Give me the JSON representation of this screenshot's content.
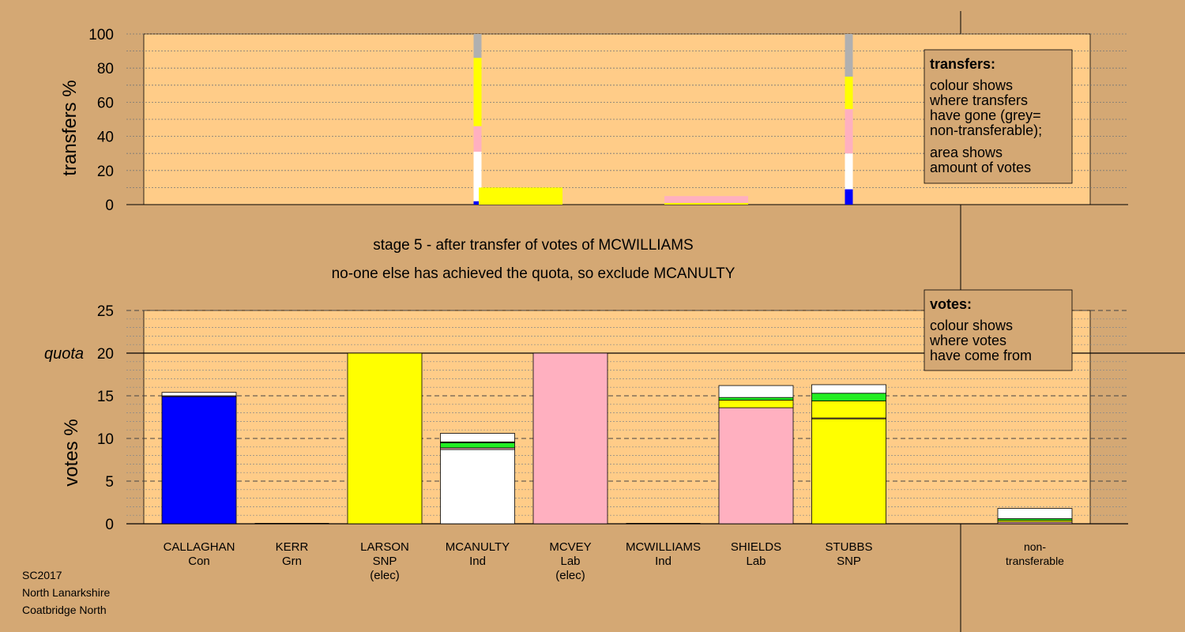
{
  "stage_line": "stage 5 - after transfer of votes of MCWILLIAMS",
  "status_line": "no-one else has achieved the quota, so exclude MCANULTY",
  "footer": {
    "line1": "SC2017",
    "line2": "North Lanarkshire",
    "line3": "Coatbridge North"
  },
  "colors": {
    "Con": "#0000ff",
    "Ind": "#ffffff",
    "Grn": "#22ee22",
    "Lab": "#ffb0c0",
    "SNP": "#ffff00",
    "nontransferable": "#b0b0b0"
  },
  "chart_data": [
    {
      "type": "bar",
      "ylabel": "transfers %",
      "ylim": [
        0,
        100
      ],
      "yticks": [
        0,
        20,
        40,
        60,
        80,
        100
      ],
      "legend": {
        "title": "transfers:",
        "lines": [
          "colour shows",
          "where transfers",
          "have gone (grey=",
          "non-transferable);",
          "area shows",
          "amount of votes"
        ],
        "placement": "top-right"
      },
      "bars": [
        {
          "name": "MCANULTY-outgoing",
          "x": 3.12,
          "segments": [
            {
              "party": "Con",
              "value": 2
            },
            {
              "party": "Ind",
              "value": 29
            },
            {
              "party": "Lab",
              "value": 15
            },
            {
              "party": "SNP",
              "value": 40
            },
            {
              "party": "nontransferable",
              "value": 14
            }
          ]
        },
        {
          "name": "LARSON-surplus",
          "x": 3.43,
          "segments": [
            {
              "party": "SNP",
              "value": 10
            }
          ]
        },
        {
          "name": "MCVEY-surplus",
          "x": 5.43,
          "segments": [
            {
              "party": "SNP",
              "value": 1
            },
            {
              "party": "Lab",
              "value": 4
            }
          ]
        },
        {
          "name": "MCWILLIAMS-outgoing",
          "x": 7.12,
          "segments": [
            {
              "party": "Con",
              "value": 9
            },
            {
              "party": "Ind",
              "value": 21
            },
            {
              "party": "Lab",
              "value": 26
            },
            {
              "party": "SNP",
              "value": 19
            },
            {
              "party": "nontransferable",
              "value": 25
            }
          ]
        }
      ]
    },
    {
      "type": "bar",
      "ylabel": "votes %",
      "quota_label": "quota",
      "quota": 20,
      "ylim": [
        0,
        25
      ],
      "yticks": [
        0,
        5,
        10,
        15,
        20,
        25
      ],
      "legend": {
        "title": "votes:",
        "lines": [
          "colour shows",
          "where votes",
          "have come from"
        ],
        "placement": "top-right"
      },
      "categories": [
        {
          "name": "CALLAGHAN",
          "party": "Con",
          "status": ""
        },
        {
          "name": "KERR",
          "party": "Grn",
          "status": ""
        },
        {
          "name": "LARSON",
          "party": "SNP",
          "status": "(elec)"
        },
        {
          "name": "MCANULTY",
          "party": "Ind",
          "status": ""
        },
        {
          "name": "MCVEY",
          "party": "Lab",
          "status": "(elec)"
        },
        {
          "name": "MCWILLIAMS",
          "party": "Ind",
          "status": ""
        },
        {
          "name": "SHIELDS",
          "party": "Lab",
          "status": ""
        },
        {
          "name": "STUBBS",
          "party": "SNP",
          "status": ""
        },
        {
          "name": "non-",
          "party": "transferable",
          "status": ""
        }
      ],
      "stacks": [
        [
          {
            "party": "Con",
            "value": 14.9
          },
          {
            "party": "Lab",
            "value": 0.1
          },
          {
            "party": "Ind",
            "value": 0.4
          }
        ],
        [],
        [
          {
            "party": "SNP",
            "value": 20
          }
        ],
        [
          {
            "party": "Ind",
            "value": 8.7
          },
          {
            "party": "Lab",
            "value": 0.2
          },
          {
            "party": "Grn",
            "value": 0.6
          },
          {
            "party": "SNP",
            "value": 0.1
          },
          {
            "party": "Ind",
            "value": 1.0
          }
        ],
        [
          {
            "party": "Lab",
            "value": 20
          }
        ],
        [],
        [
          {
            "party": "Lab",
            "value": 13.6
          },
          {
            "party": "SNP",
            "value": 0.9
          },
          {
            "party": "Grn",
            "value": 0.3
          },
          {
            "party": "Ind",
            "value": 1.4
          }
        ],
        [
          {
            "party": "SNP",
            "value": 12.3
          },
          {
            "party": "Lab",
            "value": 0.1
          },
          {
            "party": "SNP",
            "value": 2.0
          },
          {
            "party": "Grn",
            "value": 0.9
          },
          {
            "party": "Ind",
            "value": 1.0
          }
        ],
        [
          {
            "party": "Lab",
            "value": 0.2
          },
          {
            "party": "SNP",
            "value": 0.2
          },
          {
            "party": "Grn",
            "value": 0.2
          },
          {
            "party": "Ind",
            "value": 1.2
          }
        ]
      ]
    }
  ]
}
